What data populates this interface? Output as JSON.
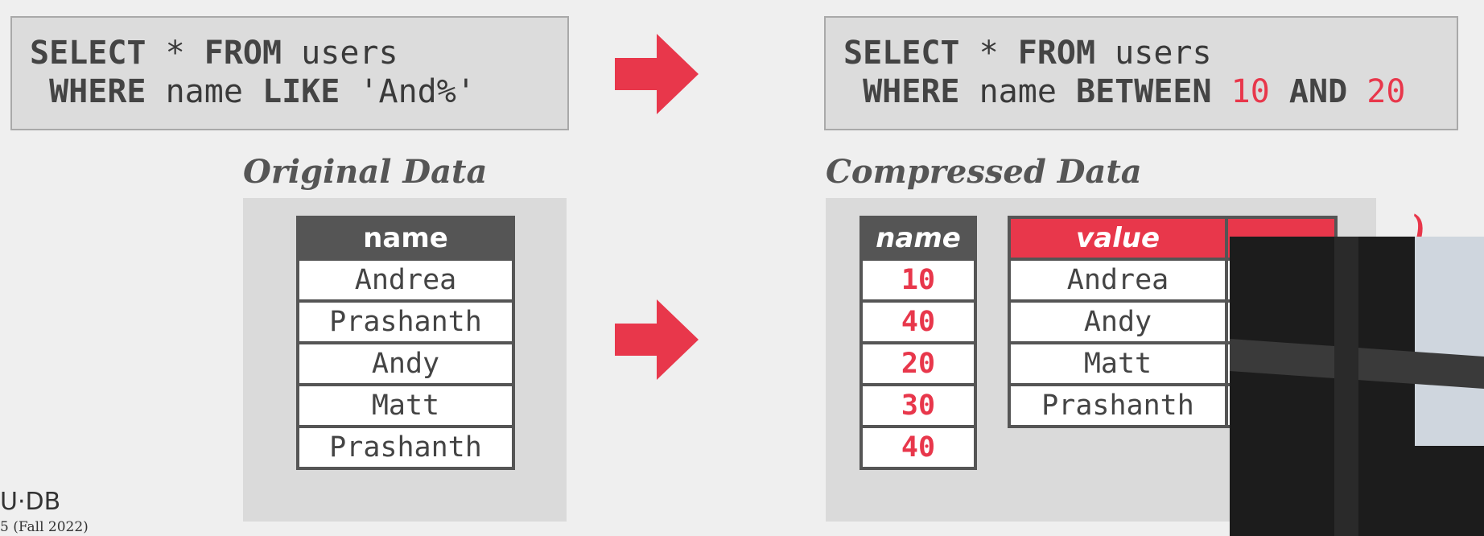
{
  "query_left": {
    "line1": {
      "kw1": "SELECT",
      "star": " * ",
      "kw2": "FROM",
      "table": " users"
    },
    "line2": {
      "kw1": " WHERE",
      "col": " name ",
      "kw2": "LIKE",
      "pattern": " 'And%'"
    }
  },
  "query_right": {
    "line1": {
      "kw1": "SELECT",
      "star": " * ",
      "kw2": "FROM",
      "table": " users"
    },
    "line2": {
      "kw1": " WHERE",
      "col": " name ",
      "kw2": "BETWEEN",
      "v1": " 10",
      "kw3": " AND",
      "v2": " 20"
    }
  },
  "original": {
    "title": "Original Data",
    "header": "name",
    "rows": [
      "Andrea",
      "Prashanth",
      "Andy",
      "Matt",
      "Prashanth"
    ]
  },
  "compressed": {
    "title": "Compressed Data",
    "codes_header": "name",
    "codes": [
      "10",
      "40",
      "20",
      "30",
      "40"
    ],
    "dict_header": "value",
    "dict_values": [
      "Andrea",
      "Andy",
      "Matt",
      "Prashanth"
    ]
  },
  "footer": {
    "logo": "U·DB",
    "course": "5 (Fall 2022)"
  },
  "colors": {
    "accent": "#e8374b",
    "header": "#555555",
    "panel": "#dadada"
  }
}
